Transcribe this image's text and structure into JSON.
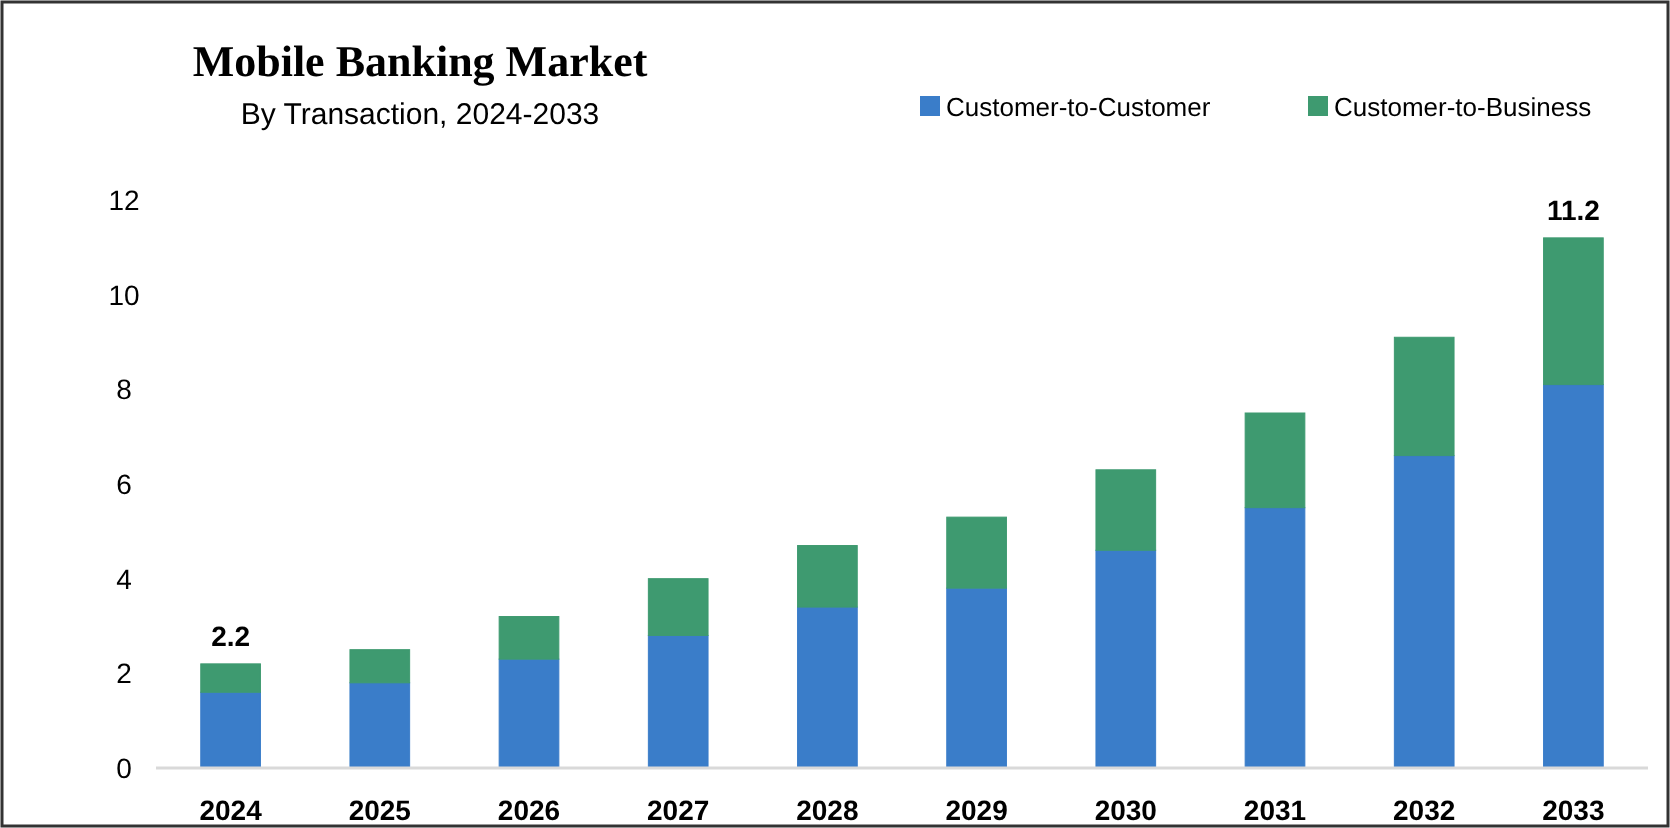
{
  "chart_data": {
    "type": "bar",
    "title": "Mobile Banking Market",
    "subtitle": "By Transaction, 2024-2033",
    "categories": [
      "2024",
      "2025",
      "2026",
      "2027",
      "2028",
      "2029",
      "2030",
      "2031",
      "2032",
      "2033"
    ],
    "series": [
      {
        "name": "Customer-to-Customer",
        "color": "#3a7dc9",
        "values": [
          1.6,
          1.8,
          2.3,
          2.8,
          3.4,
          3.8,
          4.6,
          5.5,
          6.6,
          8.1
        ]
      },
      {
        "name": "Customer-to-Business",
        "color": "#3e9a70",
        "values": [
          0.6,
          0.7,
          0.9,
          1.2,
          1.3,
          1.5,
          1.7,
          2.0,
          2.5,
          3.1
        ]
      }
    ],
    "stacked": true,
    "totals": [
      "2.2",
      null,
      null,
      null,
      null,
      null,
      null,
      null,
      null,
      "11.2"
    ],
    "ylim": [
      0,
      12
    ],
    "yticks": [
      0,
      2,
      4,
      6,
      8,
      10,
      12
    ],
    "grid": false,
    "legend": "top right"
  }
}
